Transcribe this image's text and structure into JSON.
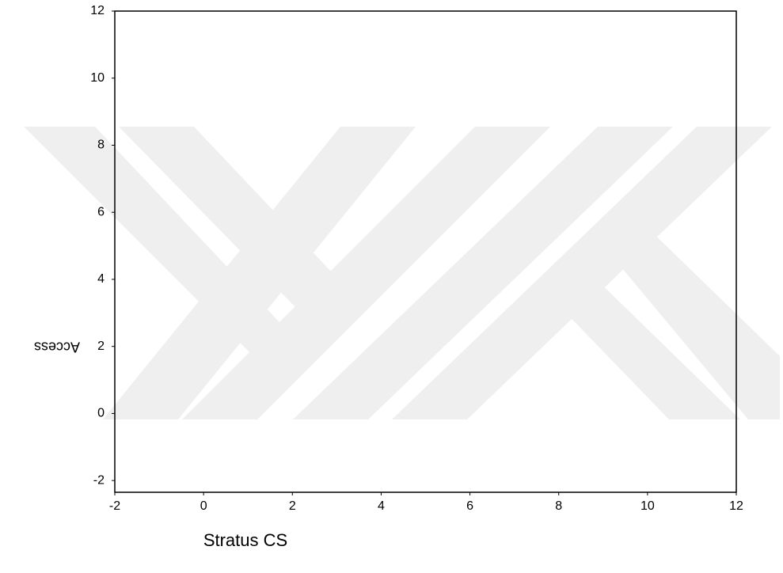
{
  "chart_data": {
    "type": "scatter",
    "xlabel": "Stratus CS",
    "ylabel": "Access",
    "xlim": [
      -2,
      12
    ],
    "ylim": [
      -2.35,
      12
    ],
    "xticks": [
      -2,
      0,
      2,
      4,
      6,
      8,
      10,
      12
    ],
    "yticks": [
      -2,
      0,
      2,
      4,
      6,
      8,
      10,
      12
    ]
  }
}
